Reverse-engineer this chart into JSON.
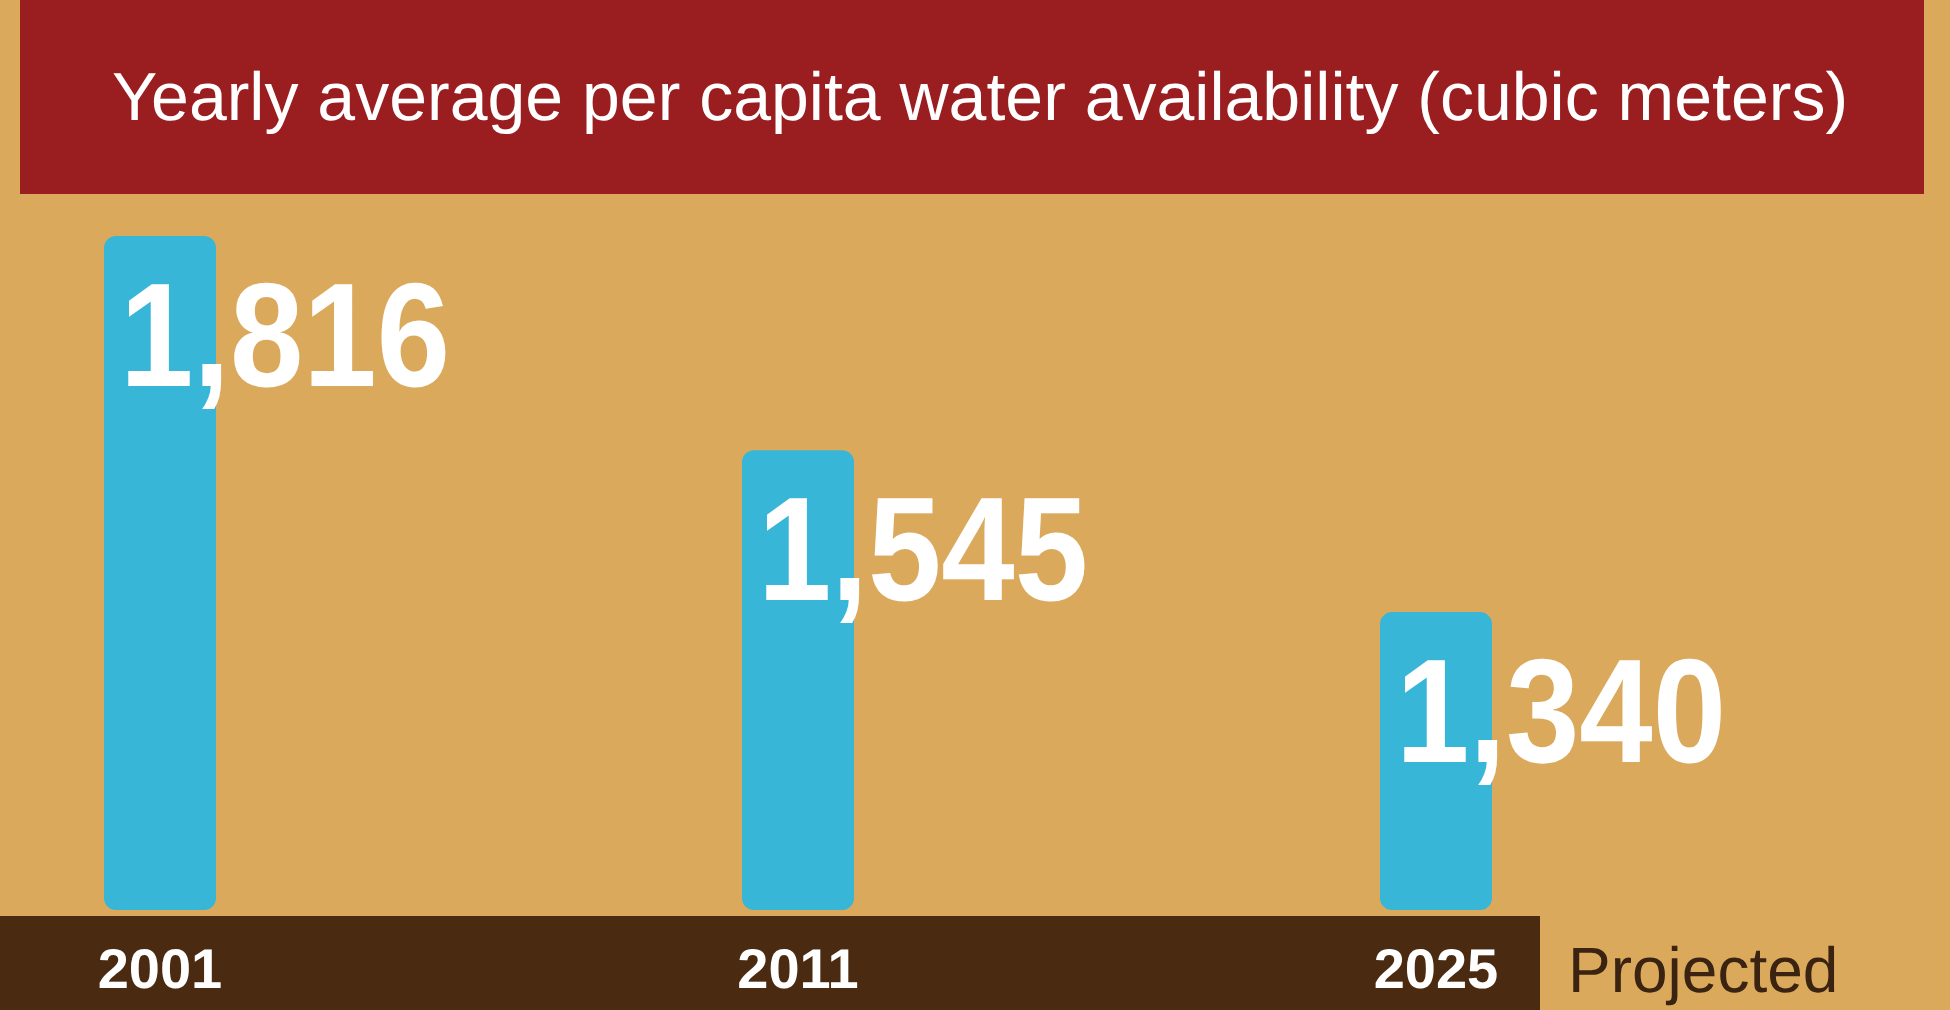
{
  "chart_data": {
    "type": "bar",
    "title": "Yearly average per capita water availability (cubic meters)",
    "categories": [
      "2001",
      "2011",
      "2025"
    ],
    "values": [
      1816,
      1545,
      1340
    ],
    "value_labels": [
      "1,816",
      "1,545",
      "1,340"
    ],
    "color": "#38b6d8",
    "ylim": [
      963,
      1816
    ],
    "annotations": [
      "Projected"
    ]
  }
}
